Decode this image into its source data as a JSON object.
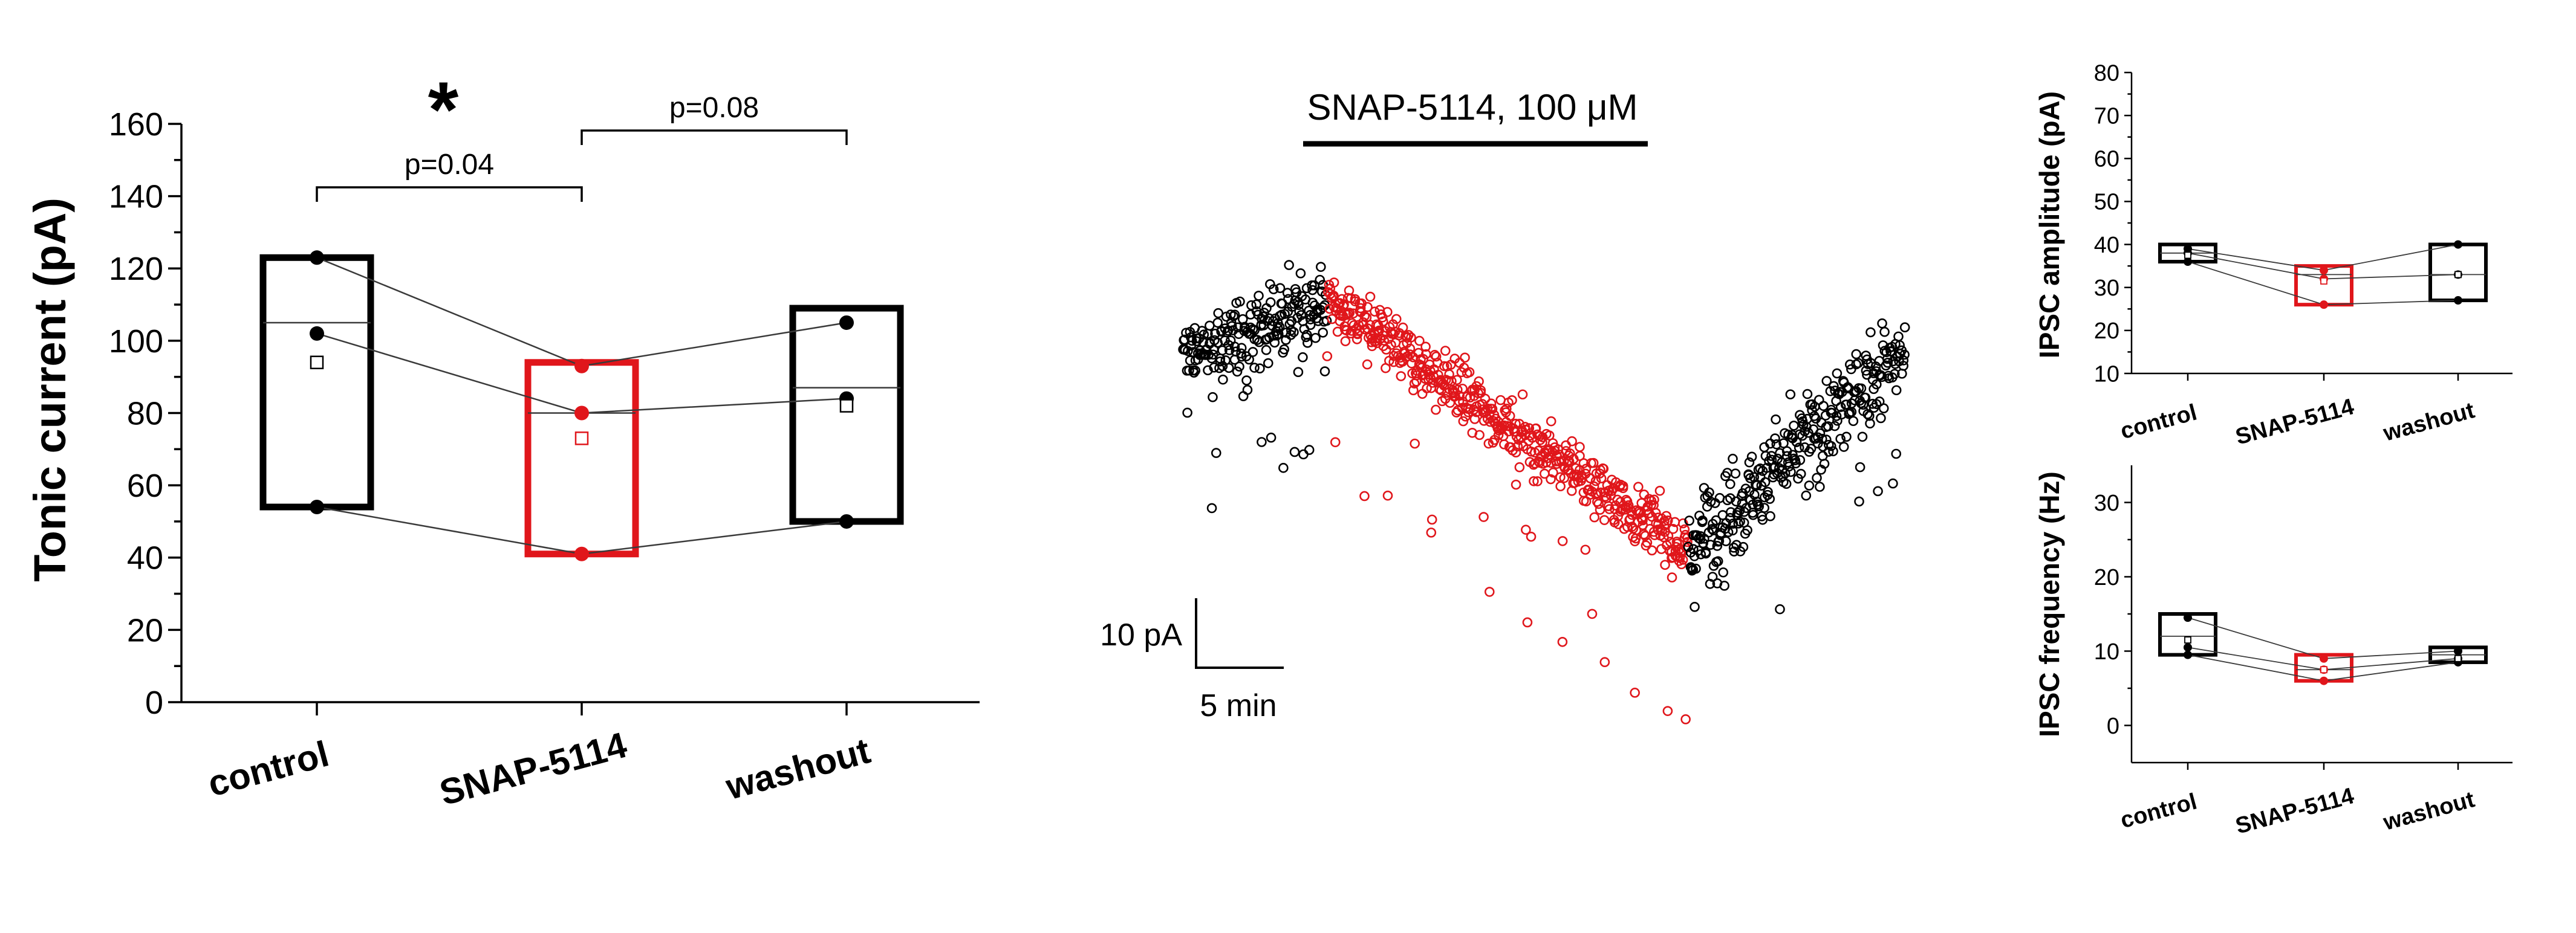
{
  "colors": {
    "control": "#000000",
    "drug": "#e0161b",
    "axis": "#000000",
    "line": "#3a3a3a"
  },
  "chart_data": [
    {
      "id": "tonic",
      "type": "box",
      "ylabel": "Tonic current (pA)",
      "ylim": [
        0,
        160
      ],
      "yticks": [
        0,
        20,
        40,
        60,
        80,
        100,
        120,
        140,
        160
      ],
      "categories": [
        "control",
        "SNAP-5114",
        "washout"
      ],
      "boxes": [
        {
          "low": 54,
          "high": 123,
          "median": 105,
          "mean": 94
        },
        {
          "low": 41,
          "high": 94,
          "median": 80,
          "mean": 73
        },
        {
          "low": 50,
          "high": 109,
          "median": 87,
          "mean": 82
        }
      ],
      "cells": [
        [
          123,
          93,
          105
        ],
        [
          102,
          80,
          84
        ],
        [
          54,
          41,
          50
        ]
      ],
      "significance": [
        {
          "from": 0,
          "to": 1,
          "label": "p=0.04",
          "star": "*"
        },
        {
          "from": 1,
          "to": 2,
          "label": "p=0.08",
          "star": ""
        }
      ]
    },
    {
      "id": "trace",
      "type": "scatter",
      "title": "SNAP-5114, 100 μM",
      "segments": [
        {
          "name": "baseline",
          "t": [
            0,
            20
          ],
          "mean": [
            100,
            112
          ],
          "sd": 7
        },
        {
          "name": "drug",
          "t": [
            20,
            70
          ],
          "mean": [
            112,
            62
          ],
          "sd": 6
        },
        {
          "name": "washout",
          "t": [
            70,
            100
          ],
          "mean": [
            62,
            102
          ],
          "sd": 10
        }
      ],
      "scalebar": {
        "y_label": "10 pA",
        "x_label": "5 min"
      }
    },
    {
      "id": "amplitude",
      "type": "box",
      "ylabel": "IPSC amplitude (pA)",
      "ylim": [
        10,
        80
      ],
      "yticks": [
        10,
        20,
        30,
        40,
        50,
        60,
        70,
        80
      ],
      "categories": [
        "control",
        "SNAP-5114",
        "washout"
      ],
      "boxes": [
        {
          "low": 36,
          "high": 40,
          "median": 38,
          "mean": 37.5
        },
        {
          "low": 26,
          "high": 35,
          "median": 33,
          "mean": 31.5
        },
        {
          "low": 27,
          "high": 40,
          "median": 33,
          "mean": 33
        }
      ],
      "cells": [
        [
          39,
          34,
          40
        ],
        [
          38,
          32,
          33
        ],
        [
          36,
          26,
          27
        ]
      ]
    },
    {
      "id": "frequency",
      "type": "box",
      "ylabel": "IPSC frequency (Hz)",
      "ylim": [
        -5,
        35
      ],
      "yticks": [
        0,
        10,
        20,
        30
      ],
      "categories": [
        "control",
        "SNAP-5114",
        "washout"
      ],
      "boxes": [
        {
          "low": 9.5,
          "high": 15,
          "median": 12,
          "mean": 11.5
        },
        {
          "low": 6,
          "high": 9.5,
          "median": 7.5,
          "mean": 7.5
        },
        {
          "low": 8.5,
          "high": 10.5,
          "median": 9.5,
          "mean": 9
        }
      ],
      "cells": [
        [
          14.5,
          9,
          10
        ],
        [
          10.5,
          7.5,
          9
        ],
        [
          9.5,
          6,
          8.5
        ]
      ]
    }
  ]
}
